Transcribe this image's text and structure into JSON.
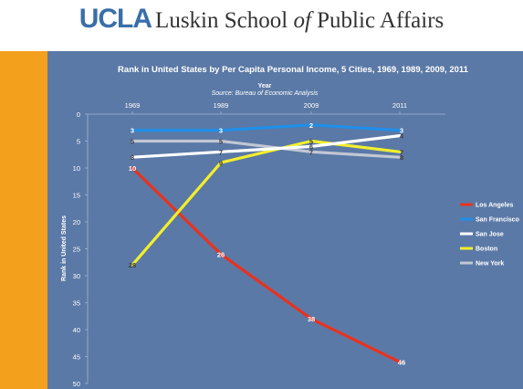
{
  "header": {
    "brand": "UCLA",
    "school_pre": "Luskin School ",
    "school_of": "of",
    "school_post": " Public Affairs"
  },
  "colors": {
    "background": "#5b79a6",
    "sidebar": "#f3a01c",
    "brand": "#3a6ea8"
  },
  "chart_data": {
    "type": "line",
    "title": "Rank in United States by Per Capita Personal Income, 5 Cities, 1969, 1989, 2009, 2011",
    "subtitle": "Source: Bureau of Economic Analysis",
    "xlabel": "Year",
    "ylabel": "Rank in United States",
    "categories": [
      "1969",
      "1989",
      "2009",
      "2011"
    ],
    "yticks": [
      0,
      5,
      10,
      15,
      20,
      25,
      30,
      35,
      40,
      45,
      50
    ],
    "ylim": [
      0,
      50
    ],
    "y_inverted": true,
    "legend_position": "right",
    "series": [
      {
        "name": "Los Angeles",
        "color": "#e8321f",
        "values": [
          10,
          26,
          38,
          46
        ],
        "labels": [
          "10",
          "26",
          "38",
          "46"
        ]
      },
      {
        "name": "San Francisco",
        "color": "#1f8fe8",
        "values": [
          3,
          3,
          2,
          3
        ],
        "labels": [
          "3",
          "3",
          "2",
          "3"
        ]
      },
      {
        "name": "San Jose",
        "color": "#ffffff",
        "values": [
          8,
          7,
          6,
          4
        ],
        "labels": [
          "8",
          "7",
          "6",
          "4"
        ]
      },
      {
        "name": "Boston",
        "color": "#f2ef2c",
        "values": [
          28,
          9,
          5,
          7
        ],
        "labels": [
          "28",
          "9",
          "5",
          "7"
        ]
      },
      {
        "name": "New York",
        "color": "#c2c7d3",
        "values": [
          5,
          5,
          7,
          8
        ],
        "labels": [
          "5",
          "5",
          "7",
          "8"
        ]
      }
    ]
  }
}
